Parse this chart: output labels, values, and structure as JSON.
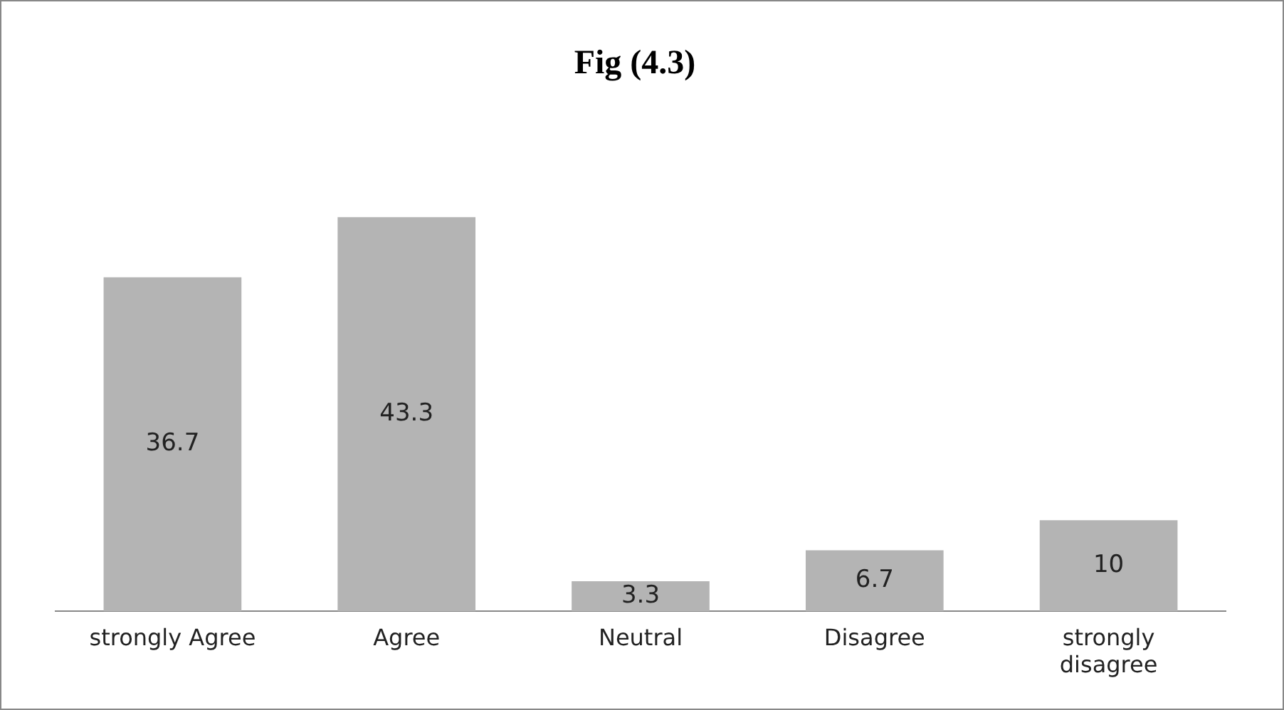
{
  "chart_data": {
    "type": "bar",
    "title": "Fig (4.3)",
    "categories": [
      "strongly Agree",
      "Agree",
      "Neutral",
      "Disagree",
      "strongly disagree"
    ],
    "values": [
      36.7,
      43.3,
      3.3,
      6.7,
      10
    ],
    "color": "#b4b4b4",
    "relative": false,
    "data_labels": true,
    "grid": false,
    "legend": false
  }
}
